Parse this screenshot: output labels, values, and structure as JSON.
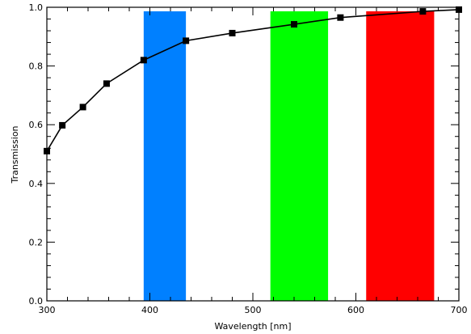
{
  "chart_data": {
    "type": "line",
    "title": "",
    "xlabel": "Wavelength [nm]",
    "ylabel": "Transmission",
    "xlim": [
      300,
      700
    ],
    "ylim": [
      0.0,
      1.0
    ],
    "grid": false,
    "x_ticks": [
      300,
      400,
      500,
      600,
      700
    ],
    "y_ticks": [
      0.0,
      0.2,
      0.4,
      0.6,
      0.8,
      1.0
    ],
    "series": [
      {
        "color": "#000000",
        "marker": "square",
        "x": [
          300,
          315,
          335,
          358,
          394,
          435,
          480,
          540,
          585,
          665,
          700
        ],
        "y": [
          0.51,
          0.598,
          0.66,
          0.74,
          0.82,
          0.886,
          0.912,
          0.942,
          0.965,
          0.986,
          0.992
        ]
      }
    ],
    "bands": [
      {
        "x0": 394,
        "x1": 435,
        "color": "#0080ff"
      },
      {
        "x0": 517,
        "x1": 573,
        "color": "#00ff00"
      },
      {
        "x0": 610,
        "x1": 676,
        "color": "#ff0000"
      }
    ]
  }
}
